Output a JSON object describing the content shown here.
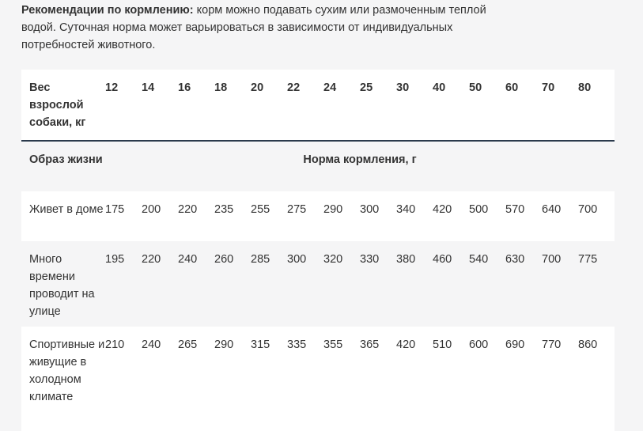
{
  "intro": {
    "title": "Рекомендации по кормлению:",
    "text": "корм можно подавать сухим или размоченным теплой водой. Суточная норма может варьироваться в зависимости от индивидуальных потребностей животного."
  },
  "table": {
    "header": [
      "Вес взрослой собаки, кг",
      12,
      14,
      16,
      18,
      20,
      22,
      24,
      25,
      30,
      40,
      50,
      60,
      70,
      80
    ],
    "subheader": {
      "label": "Образ жизни",
      "title": "Норма кормления, г"
    },
    "rows": [
      [
        "Живет в доме",
        175,
        200,
        220,
        235,
        255,
        275,
        290,
        300,
        340,
        420,
        500,
        570,
        640,
        700
      ],
      [
        "Много времени проводит на улице",
        195,
        220,
        240,
        260,
        285,
        300,
        320,
        330,
        380,
        460,
        540,
        630,
        700,
        775
      ],
      [
        "Спортивные и живущие в холодном климате",
        210,
        240,
        265,
        290,
        315,
        335,
        355,
        365,
        420,
        510,
        600,
        690,
        770,
        860
      ]
    ]
  }
}
